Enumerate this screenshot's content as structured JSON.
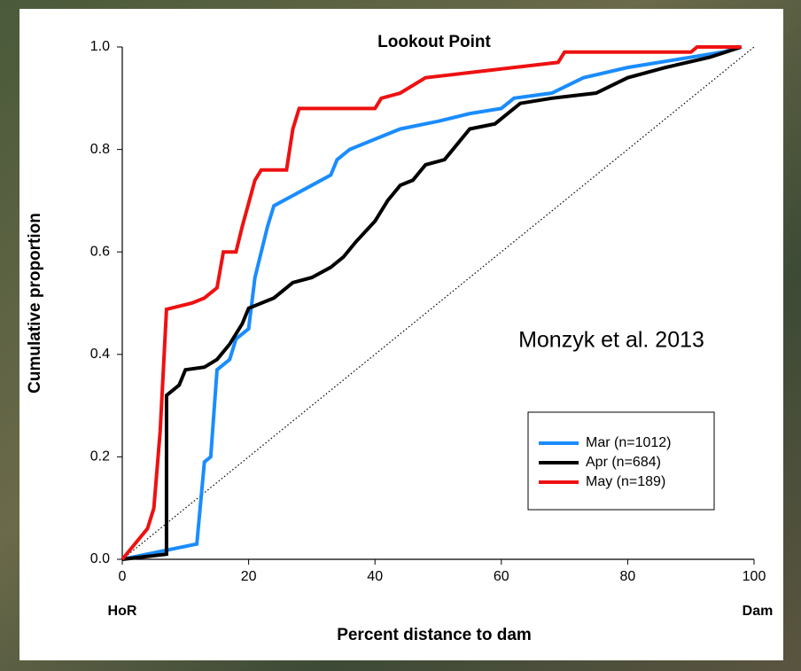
{
  "chart_data": {
    "type": "line",
    "title": "Lookout Point",
    "xlabel": "Percent distance to dam",
    "ylabel": "Cumulative proportion",
    "annotation": "Monzyk et al. 2013",
    "x_end_labels": [
      "HoR",
      "Dam"
    ],
    "xlim": [
      0,
      100
    ],
    "ylim": [
      0,
      1
    ],
    "xticks": [
      0,
      20,
      40,
      60,
      80,
      100
    ],
    "yticks": [
      {
        "value": 0,
        "label": "0.0"
      },
      {
        "value": 0.2,
        "label": "0.2"
      },
      {
        "value": 0.4,
        "label": "0.4"
      },
      {
        "value": 0.6,
        "label": "0.6"
      },
      {
        "value": 0.8,
        "label": "0.8"
      },
      {
        "value": 1,
        "label": "1.0"
      }
    ],
    "diagonal": true,
    "grid": false,
    "legend": "lower right",
    "series": [
      {
        "name": "Mar (n=1012)",
        "color": "#1a8cff",
        "x": [
          0,
          11.8,
          13,
          14,
          15,
          17,
          18,
          20,
          21,
          22,
          23,
          24,
          27,
          30,
          33,
          34,
          36,
          40,
          44,
          50,
          55,
          60,
          62,
          68,
          73,
          80,
          90,
          95,
          98
        ],
        "values": [
          0,
          0.03,
          0.19,
          0.2,
          0.37,
          0.39,
          0.43,
          0.45,
          0.55,
          0.6,
          0.65,
          0.69,
          0.71,
          0.73,
          0.75,
          0.78,
          0.8,
          0.82,
          0.84,
          0.855,
          0.87,
          0.88,
          0.9,
          0.91,
          0.94,
          0.96,
          0.98,
          0.99,
          1.0
        ]
      },
      {
        "name": "Apr (n=684)",
        "color": "#000000",
        "x": [
          0,
          7,
          7,
          9,
          10,
          13,
          15,
          17,
          19,
          20,
          24,
          27,
          30,
          33,
          35,
          37,
          40,
          42,
          44,
          46,
          48,
          51,
          53,
          55,
          59,
          63,
          68,
          75,
          80,
          86,
          93,
          98
        ],
        "values": [
          0,
          0.01,
          0.32,
          0.34,
          0.37,
          0.375,
          0.39,
          0.42,
          0.46,
          0.49,
          0.51,
          0.54,
          0.55,
          0.57,
          0.59,
          0.62,
          0.66,
          0.7,
          0.73,
          0.74,
          0.77,
          0.78,
          0.81,
          0.84,
          0.85,
          0.89,
          0.9,
          0.91,
          0.94,
          0.96,
          0.98,
          1.0
        ]
      },
      {
        "name": "May (n=189)",
        "color": "#ee1111",
        "x": [
          0,
          2,
          4,
          5,
          6,
          7,
          11,
          13,
          15,
          16,
          18,
          19,
          21,
          22,
          26,
          27,
          28,
          40,
          41,
          44,
          48,
          55,
          69,
          70,
          90,
          91,
          98
        ],
        "values": [
          0,
          0.03,
          0.06,
          0.1,
          0.25,
          0.488,
          0.5,
          0.51,
          0.53,
          0.6,
          0.6,
          0.65,
          0.74,
          0.76,
          0.76,
          0.84,
          0.88,
          0.88,
          0.9,
          0.91,
          0.94,
          0.95,
          0.97,
          0.99,
          0.99,
          1.0,
          1.0
        ]
      }
    ]
  }
}
